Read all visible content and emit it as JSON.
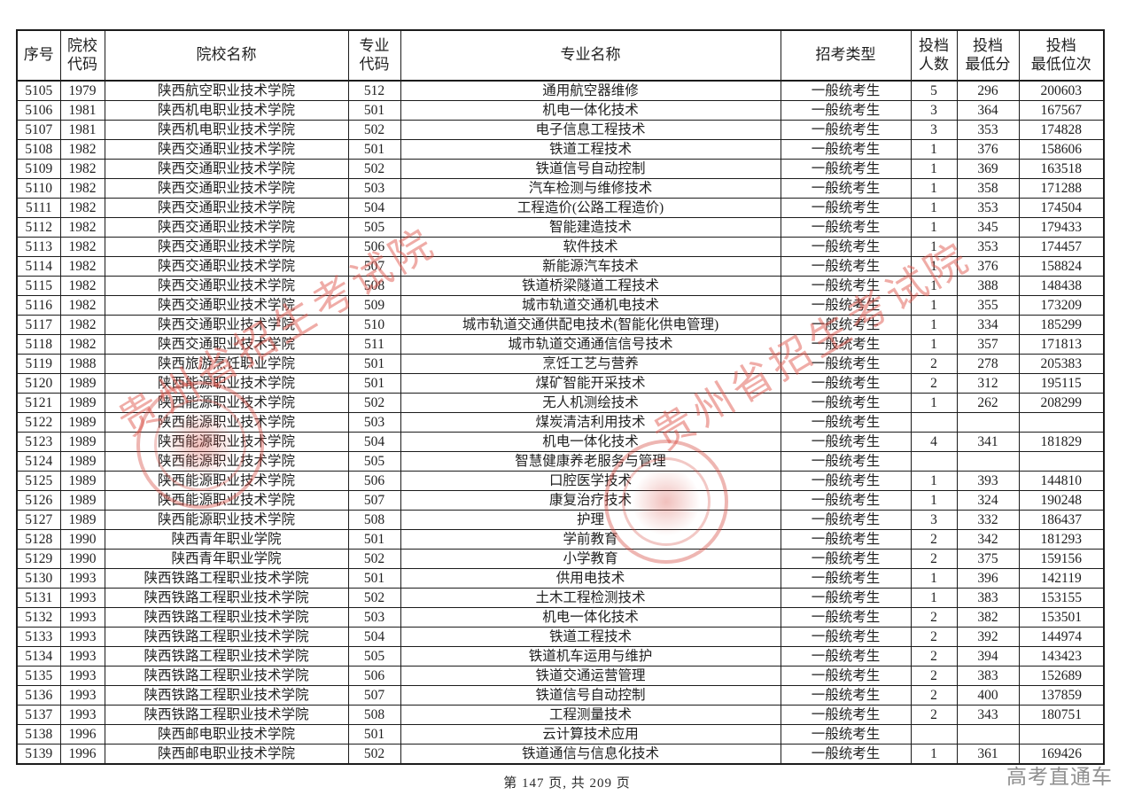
{
  "table": {
    "columns": [
      "序号",
      "院校\n代码",
      "院校名称",
      "专业\n代码",
      "专业名称",
      "招考类型",
      "投档\n人数",
      "投档\n最低分",
      "投档\n最低位次"
    ],
    "col_names": [
      "seq",
      "college-code",
      "college-name",
      "major-code",
      "major-name",
      "exam-type",
      "admit-count",
      "min-score",
      "min-rank"
    ],
    "rows": [
      [
        "5105",
        "1979",
        "陕西航空职业技术学院",
        "512",
        "通用航空器维修",
        "一般统考生",
        "5",
        "296",
        "200603"
      ],
      [
        "5106",
        "1981",
        "陕西机电职业技术学院",
        "501",
        "机电一体化技术",
        "一般统考生",
        "3",
        "364",
        "167567"
      ],
      [
        "5107",
        "1981",
        "陕西机电职业技术学院",
        "502",
        "电子信息工程技术",
        "一般统考生",
        "3",
        "353",
        "174828"
      ],
      [
        "5108",
        "1982",
        "陕西交通职业技术学院",
        "501",
        "铁道工程技术",
        "一般统考生",
        "1",
        "376",
        "158606"
      ],
      [
        "5109",
        "1982",
        "陕西交通职业技术学院",
        "502",
        "铁道信号自动控制",
        "一般统考生",
        "1",
        "369",
        "163518"
      ],
      [
        "5110",
        "1982",
        "陕西交通职业技术学院",
        "503",
        "汽车检测与维修技术",
        "一般统考生",
        "1",
        "358",
        "171288"
      ],
      [
        "5111",
        "1982",
        "陕西交通职业技术学院",
        "504",
        "工程造价(公路工程造价)",
        "一般统考生",
        "1",
        "353",
        "174504"
      ],
      [
        "5112",
        "1982",
        "陕西交通职业技术学院",
        "505",
        "智能建造技术",
        "一般统考生",
        "1",
        "345",
        "179433"
      ],
      [
        "5113",
        "1982",
        "陕西交通职业技术学院",
        "506",
        "软件技术",
        "一般统考生",
        "1",
        "353",
        "174457"
      ],
      [
        "5114",
        "1982",
        "陕西交通职业技术学院",
        "507",
        "新能源汽车技术",
        "一般统考生",
        "1",
        "376",
        "158824"
      ],
      [
        "5115",
        "1982",
        "陕西交通职业技术学院",
        "508",
        "铁道桥梁隧道工程技术",
        "一般统考生",
        "1",
        "388",
        "148438"
      ],
      [
        "5116",
        "1982",
        "陕西交通职业技术学院",
        "509",
        "城市轨道交通机电技术",
        "一般统考生",
        "1",
        "355",
        "173209"
      ],
      [
        "5117",
        "1982",
        "陕西交通职业技术学院",
        "510",
        "城市轨道交通供配电技术(智能化供电管理)",
        "一般统考生",
        "1",
        "334",
        "185299"
      ],
      [
        "5118",
        "1982",
        "陕西交通职业技术学院",
        "511",
        "城市轨道交通通信信号技术",
        "一般统考生",
        "1",
        "357",
        "171813"
      ],
      [
        "5119",
        "1988",
        "陕西旅游烹饪职业学院",
        "501",
        "烹饪工艺与营养",
        "一般统考生",
        "2",
        "278",
        "205383"
      ],
      [
        "5120",
        "1989",
        "陕西能源职业技术学院",
        "501",
        "煤矿智能开采技术",
        "一般统考生",
        "2",
        "312",
        "195115"
      ],
      [
        "5121",
        "1989",
        "陕西能源职业技术学院",
        "502",
        "无人机测绘技术",
        "一般统考生",
        "1",
        "262",
        "208299"
      ],
      [
        "5122",
        "1989",
        "陕西能源职业技术学院",
        "503",
        "煤炭清洁利用技术",
        "一般统考生",
        "",
        "",
        ""
      ],
      [
        "5123",
        "1989",
        "陕西能源职业技术学院",
        "504",
        "机电一体化技术",
        "一般统考生",
        "4",
        "341",
        "181829"
      ],
      [
        "5124",
        "1989",
        "陕西能源职业技术学院",
        "505",
        "智慧健康养老服务与管理",
        "一般统考生",
        "",
        "",
        ""
      ],
      [
        "5125",
        "1989",
        "陕西能源职业技术学院",
        "506",
        "口腔医学技术",
        "一般统考生",
        "1",
        "393",
        "144810"
      ],
      [
        "5126",
        "1989",
        "陕西能源职业技术学院",
        "507",
        "康复治疗技术",
        "一般统考生",
        "1",
        "324",
        "190248"
      ],
      [
        "5127",
        "1989",
        "陕西能源职业技术学院",
        "508",
        "护理",
        "一般统考生",
        "3",
        "332",
        "186437"
      ],
      [
        "5128",
        "1990",
        "陕西青年职业学院",
        "501",
        "学前教育",
        "一般统考生",
        "2",
        "342",
        "181293"
      ],
      [
        "5129",
        "1990",
        "陕西青年职业学院",
        "502",
        "小学教育",
        "一般统考生",
        "2",
        "375",
        "159156"
      ],
      [
        "5130",
        "1993",
        "陕西铁路工程职业技术学院",
        "501",
        "供用电技术",
        "一般统考生",
        "1",
        "396",
        "142119"
      ],
      [
        "5131",
        "1993",
        "陕西铁路工程职业技术学院",
        "502",
        "土木工程检测技术",
        "一般统考生",
        "1",
        "383",
        "153155"
      ],
      [
        "5132",
        "1993",
        "陕西铁路工程职业技术学院",
        "503",
        "机电一体化技术",
        "一般统考生",
        "2",
        "382",
        "153501"
      ],
      [
        "5133",
        "1993",
        "陕西铁路工程职业技术学院",
        "504",
        "铁道工程技术",
        "一般统考生",
        "2",
        "392",
        "144974"
      ],
      [
        "5134",
        "1993",
        "陕西铁路工程职业技术学院",
        "505",
        "铁道机车运用与维护",
        "一般统考生",
        "2",
        "394",
        "143423"
      ],
      [
        "5135",
        "1993",
        "陕西铁路工程职业技术学院",
        "506",
        "铁道交通运营管理",
        "一般统考生",
        "2",
        "383",
        "152689"
      ],
      [
        "5136",
        "1993",
        "陕西铁路工程职业技术学院",
        "507",
        "铁道信号自动控制",
        "一般统考生",
        "2",
        "400",
        "137859"
      ],
      [
        "5137",
        "1993",
        "陕西铁路工程职业技术学院",
        "508",
        "工程测量技术",
        "一般统考生",
        "2",
        "343",
        "180751"
      ],
      [
        "5138",
        "1996",
        "陕西邮电职业技术学院",
        "501",
        "云计算技术应用",
        "一般统考生",
        "",
        "",
        ""
      ],
      [
        "5139",
        "1996",
        "陕西邮电职业技术学院",
        "502",
        "铁道通信与信息化技术",
        "一般统考生",
        "1",
        "361",
        "169426"
      ]
    ]
  },
  "watermark": {
    "text": "贵州省招生考试院",
    "color": "#de5248"
  },
  "footer": {
    "page_info": "第 147 页, 共 209 页",
    "brand": "高考直通车"
  }
}
